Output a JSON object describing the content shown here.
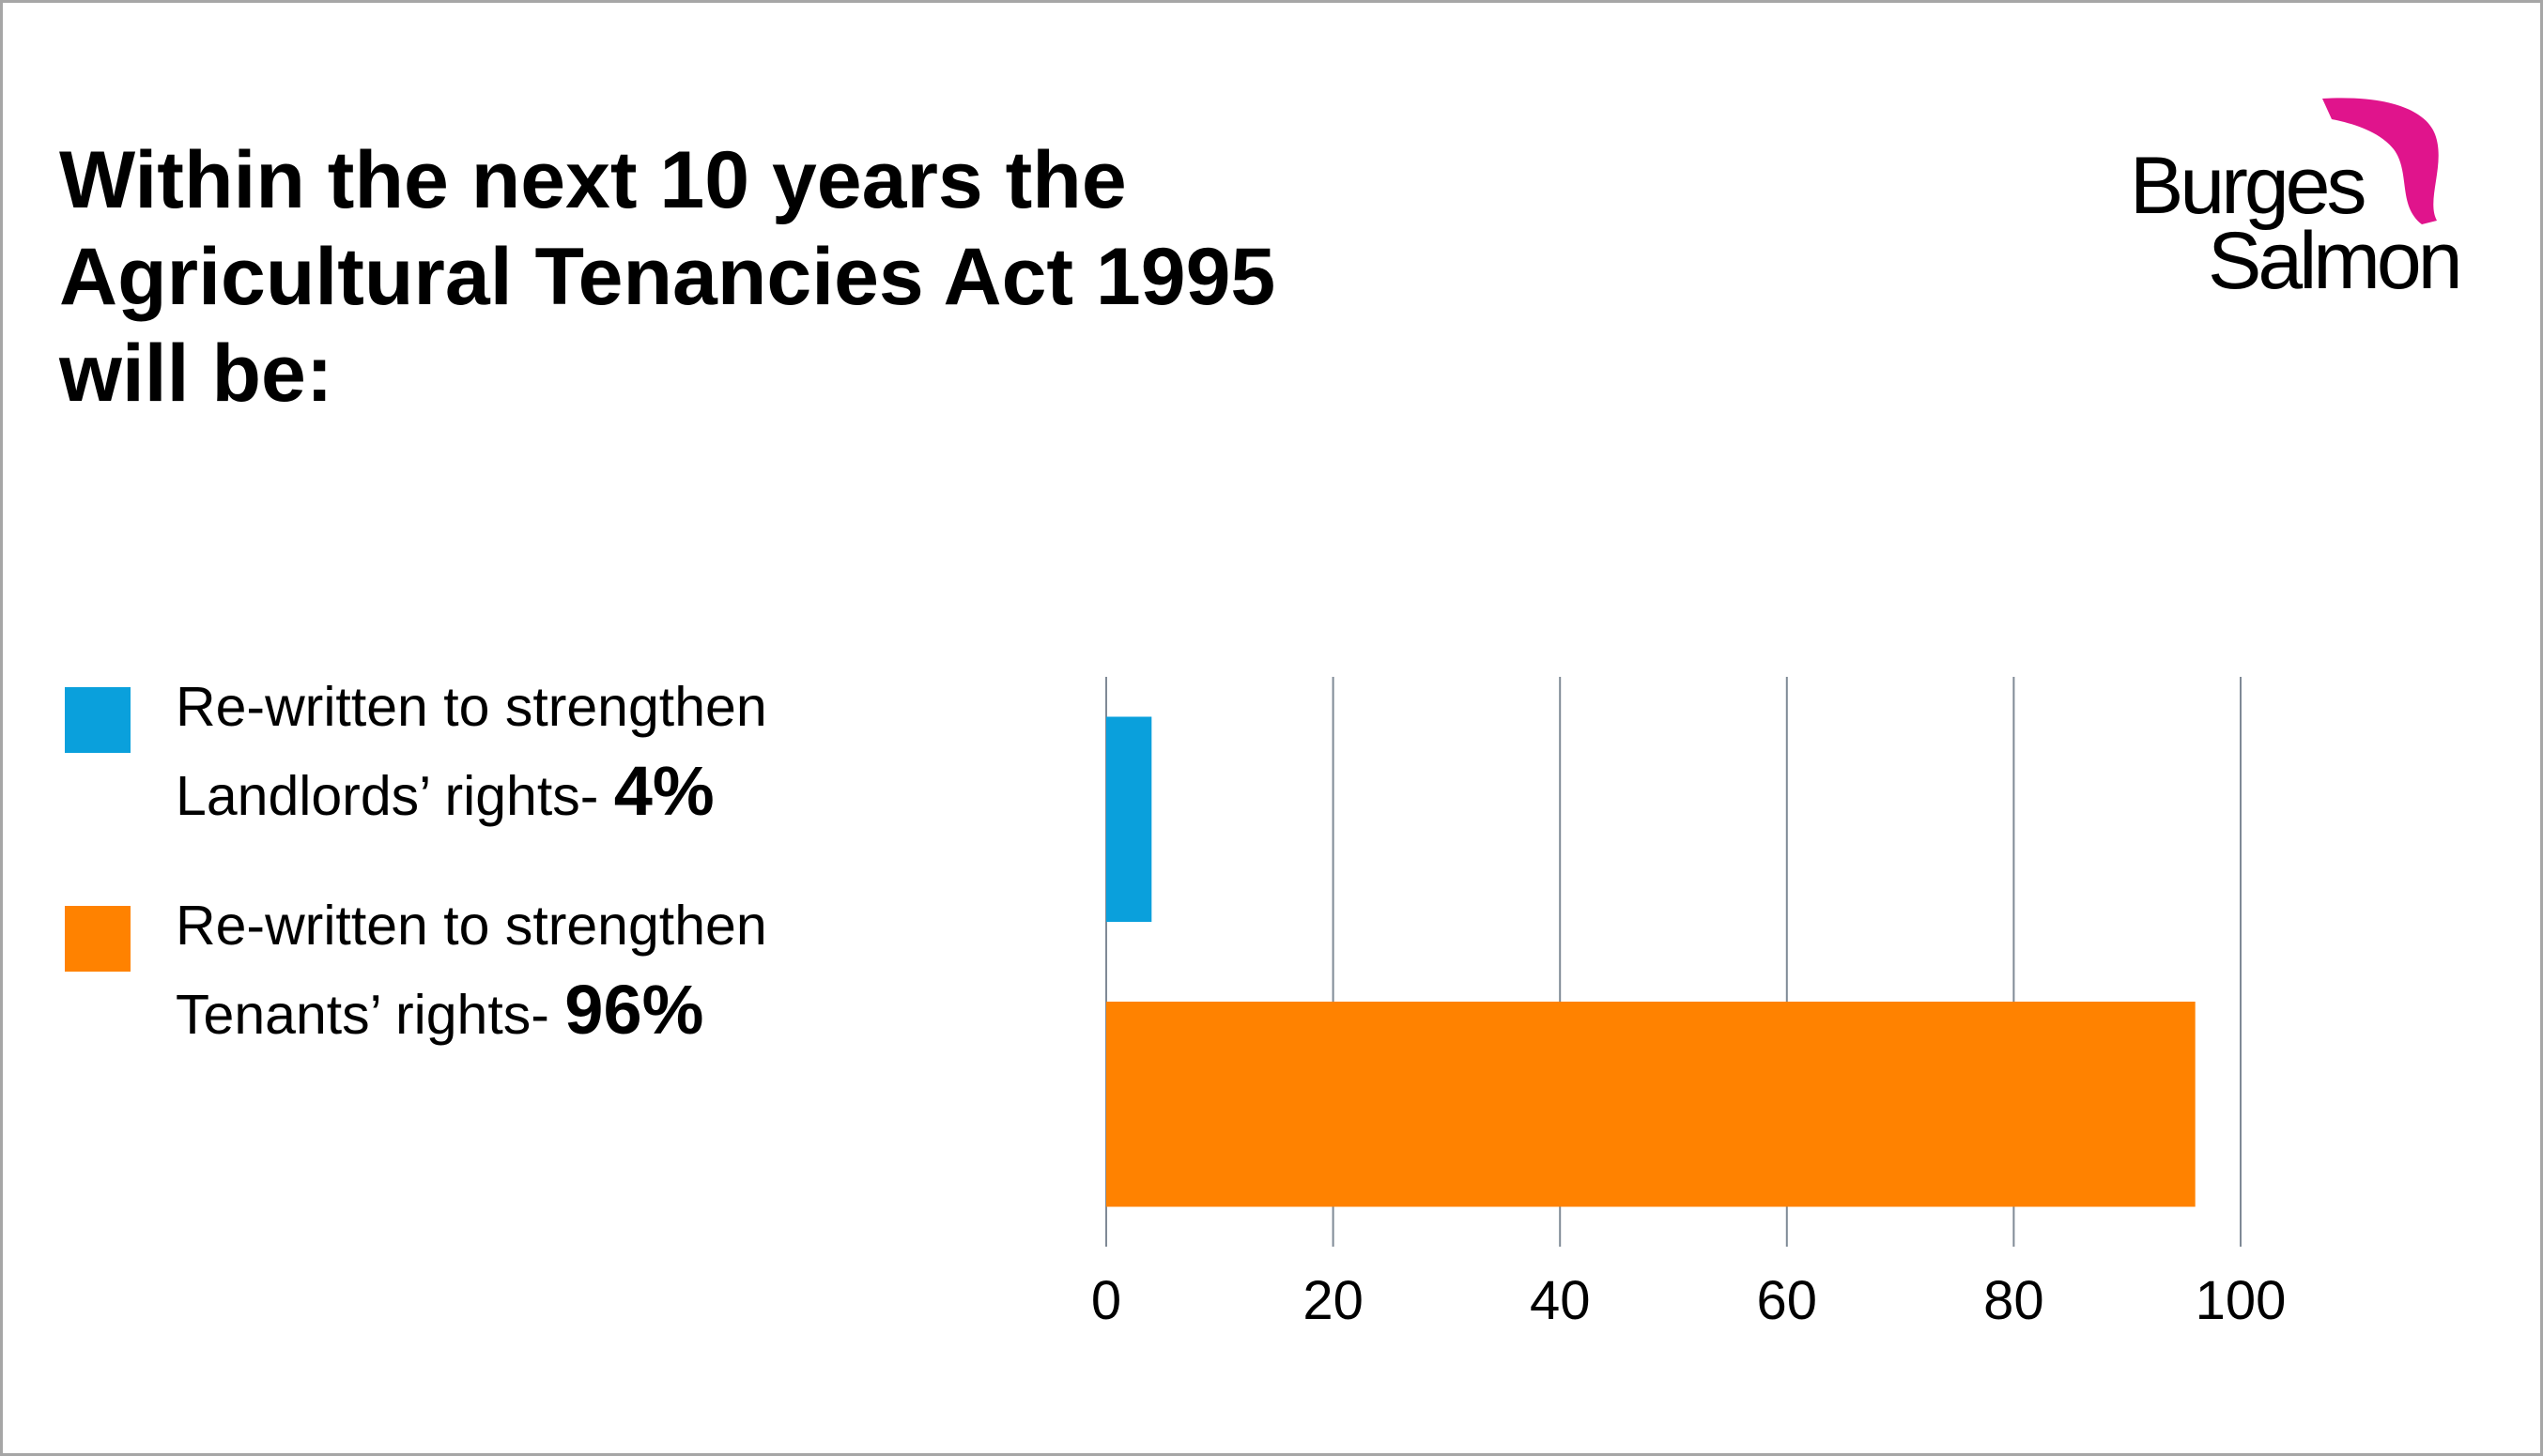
{
  "title": {
    "lines": [
      "Within the next 10 years the",
      "Agricultural Tenancies Act 1995",
      "will be:"
    ]
  },
  "logo": {
    "line1": "Burges",
    "line2": "Salmon",
    "accent_color": "#e0148c"
  },
  "legend": [
    {
      "line1": "Re-written to strengthen",
      "line2": "Landlords’ rights-",
      "pct": "4%",
      "color": "#0aa0dc"
    },
    {
      "line1": "Re-written to strengthen",
      "line2": "Tenants’ rights-",
      "pct": "96%",
      "color": "#ff8200"
    }
  ],
  "chart_data": {
    "type": "bar",
    "orientation": "horizontal",
    "categories": [
      "Landlords’ rights",
      "Tenants’ rights"
    ],
    "values": [
      4,
      96
    ],
    "colors": [
      "#0aa0dc",
      "#ff8200"
    ],
    "xlim": [
      0,
      100
    ],
    "xticks": [
      "0",
      "20",
      "40",
      "60",
      "80",
      "100"
    ],
    "grid": true,
    "legend_position": "left"
  }
}
